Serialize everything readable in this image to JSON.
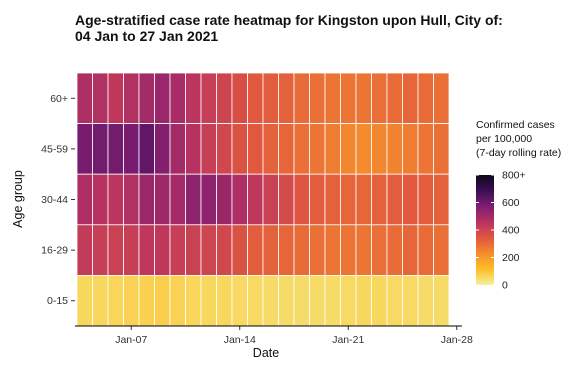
{
  "chart_data": {
    "type": "heatmap",
    "title_line1": "Age-stratified case rate heatmap for Kingston upon Hull, City of:",
    "title_line2": "04 Jan to 27 Jan 2021",
    "xlabel": "Date",
    "ylabel": "Age group",
    "x_tick_labels": [
      "Jan-07",
      "Jan-14",
      "Jan-21",
      "Jan-28"
    ],
    "x_range_days": [
      3,
      28
    ],
    "x_ticks_days": [
      7,
      14,
      21,
      28
    ],
    "x_start_day": 4,
    "age_groups": [
      "60+",
      "45-59",
      "30-44",
      "16-29",
      "0-15"
    ],
    "values": [
      [
        480,
        470,
        440,
        470,
        500,
        520,
        490,
        450,
        420,
        400,
        370,
        340,
        330,
        320,
        300,
        290,
        280,
        280,
        280,
        290,
        300,
        310,
        300,
        290
      ],
      [
        580,
        590,
        590,
        580,
        620,
        560,
        500,
        460,
        420,
        390,
        360,
        340,
        320,
        310,
        290,
        280,
        260,
        240,
        230,
        240,
        250,
        260,
        280,
        290
      ],
      [
        480,
        460,
        450,
        470,
        520,
        510,
        500,
        540,
        540,
        520,
        480,
        440,
        410,
        380,
        350,
        330,
        320,
        310,
        310,
        320,
        330,
        340,
        330,
        320
      ],
      [
        430,
        420,
        410,
        420,
        440,
        440,
        420,
        410,
        400,
        390,
        360,
        330,
        320,
        310,
        300,
        290,
        280,
        280,
        280,
        290,
        300,
        310,
        300,
        290
      ],
      [
        60,
        60,
        65,
        70,
        75,
        80,
        70,
        65,
        60,
        60,
        55,
        55,
        50,
        50,
        50,
        50,
        50,
        55,
        60,
        60,
        55,
        55,
        50,
        50
      ]
    ],
    "legend": {
      "title_lines": [
        "Confirmed cases",
        "per 100,000",
        "(7-day rolling rate)"
      ],
      "tick_values": [
        0,
        200,
        400,
        600,
        800
      ],
      "tick_labels": [
        "0",
        "200",
        "400",
        "600",
        "800+"
      ],
      "range": [
        0,
        800
      ]
    },
    "colors": {
      "scale_stops": [
        "#f3f19a",
        "#fdbf2a",
        "#f58c2d",
        "#e0573f",
        "#b93361",
        "#7e1d72",
        "#3c0e55",
        "#0d0a1c"
      ],
      "grid_lines": "#ffffff",
      "axis_line": "#000000"
    },
    "grid": true,
    "legend_position": "right"
  }
}
